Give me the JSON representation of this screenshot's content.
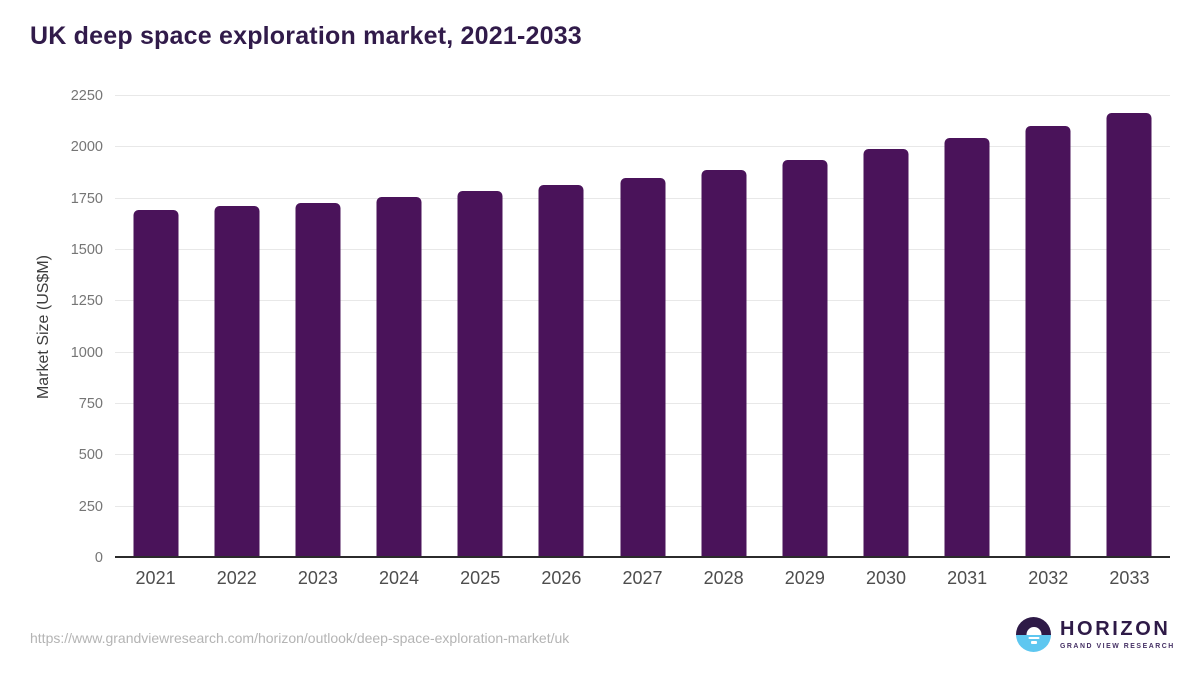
{
  "title": "UK deep space exploration market, 2021-2033",
  "source_url": "https://www.grandviewresearch.com/horizon/outlook/deep-space-exploration-market/uk",
  "logo": {
    "name": "HORIZON",
    "subtitle": "GRAND VIEW RESEARCH",
    "icon": "horizon-sun-over-water-icon"
  },
  "colors": {
    "bar": "#4a135a",
    "title_text": "#311b4a",
    "gridline": "#e8e8e8",
    "axis_line": "#2b2b2b",
    "x_tick_text": "#4d4d4d",
    "y_tick_text": "#757575",
    "url_text": "#b4b4b4",
    "logo_purple": "#2e1a47",
    "logo_blue": "#5ec7f0"
  },
  "chart_data": {
    "type": "bar",
    "title": "UK deep space exploration market, 2021-2033",
    "xlabel": "",
    "ylabel": "Market Size (US$M)",
    "categories": [
      "2021",
      "2022",
      "2023",
      "2024",
      "2025",
      "2026",
      "2027",
      "2028",
      "2029",
      "2030",
      "2031",
      "2032",
      "2033"
    ],
    "values": [
      1695,
      1712,
      1730,
      1756,
      1786,
      1819,
      1853,
      1892,
      1938,
      1990,
      2045,
      2103,
      2168
    ],
    "ylim": [
      0,
      2250
    ],
    "yticks": [
      0,
      250,
      500,
      750,
      1000,
      1250,
      1500,
      1750,
      2000,
      2250
    ],
    "grid": true,
    "legend": false,
    "bar_color": "#4a135a"
  }
}
